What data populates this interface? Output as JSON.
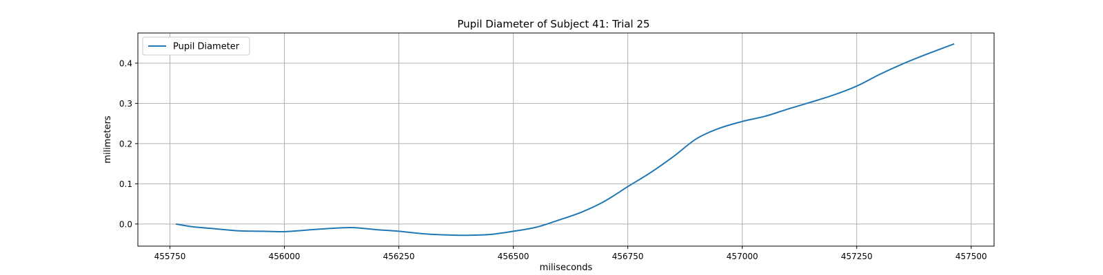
{
  "chart_data": {
    "type": "line",
    "title": "Pupil Diameter of Subject 41: Trial 25",
    "xlabel": "miliseconds",
    "ylabel": "milimeters",
    "xlim": [
      455680,
      457550
    ],
    "ylim": [
      -0.055,
      0.475
    ],
    "xticks": [
      455750,
      456000,
      456250,
      456500,
      456750,
      457000,
      457250,
      457500
    ],
    "yticks": [
      0.0,
      0.1,
      0.2,
      0.3,
      0.4
    ],
    "ytick_labels": [
      "0.0",
      "0.1",
      "0.2",
      "0.3",
      "0.4"
    ],
    "grid": true,
    "legend_position": "upper-left",
    "series": [
      {
        "name": "Pupil Diameter",
        "color": "#1f77b4",
        "x": [
          455763,
          455800,
          455850,
          455900,
          455950,
          456000,
          456050,
          456100,
          456150,
          456200,
          456250,
          456300,
          456350,
          456400,
          456450,
          456500,
          456550,
          456600,
          456650,
          456700,
          456750,
          456800,
          456850,
          456900,
          456950,
          457000,
          457050,
          457100,
          457150,
          457200,
          457250,
          457300,
          457350,
          457400,
          457463
        ],
        "y": [
          0.0,
          -0.007,
          -0.012,
          -0.017,
          -0.018,
          -0.019,
          -0.015,
          -0.011,
          -0.009,
          -0.014,
          -0.018,
          -0.024,
          -0.027,
          -0.028,
          -0.026,
          -0.018,
          -0.008,
          0.01,
          0.03,
          0.057,
          0.093,
          0.128,
          0.168,
          0.212,
          0.238,
          0.255,
          0.268,
          0.286,
          0.303,
          0.321,
          0.343,
          0.372,
          0.398,
          0.421,
          0.448
        ]
      }
    ]
  }
}
